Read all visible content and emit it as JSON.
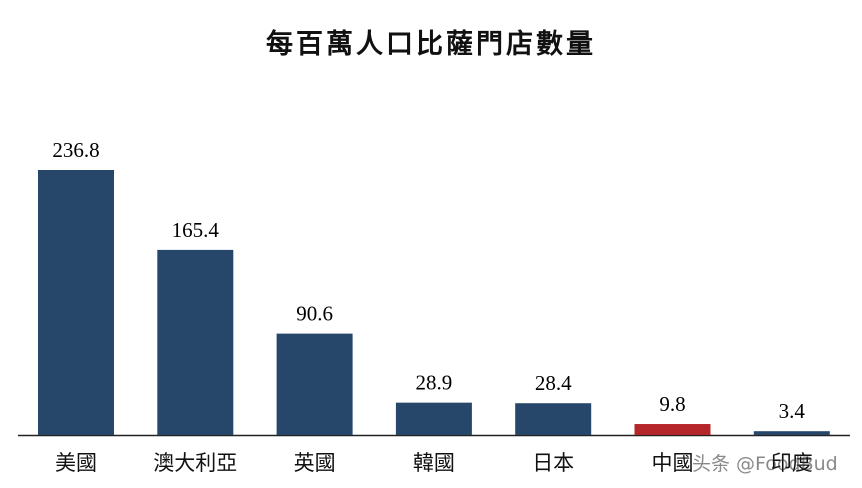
{
  "chart_data": {
    "type": "bar",
    "title": "每百萬人口比薩門店數量",
    "categories": [
      "美國",
      "澳大利亞",
      "英國",
      "韓國",
      "日本",
      "中國",
      "印度"
    ],
    "values": [
      236.8,
      165.4,
      90.6,
      28.9,
      28.4,
      9.8,
      3.4
    ],
    "value_labels": [
      "236.8",
      "165.4",
      "90.6",
      "28.9",
      "28.4",
      "9.8",
      "3.4"
    ],
    "colors": [
      "#26476a",
      "#26476a",
      "#26476a",
      "#26476a",
      "#26476a",
      "#b5262a",
      "#26476a"
    ],
    "xlabel": "",
    "ylabel": "",
    "ylim": [
      0,
      236.8
    ],
    "grid": false,
    "legend": "none"
  },
  "watermark": "头条 @FoodBud"
}
